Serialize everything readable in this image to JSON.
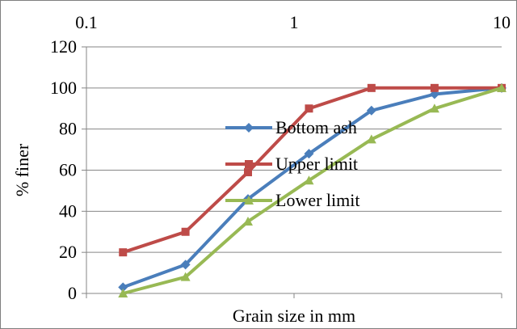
{
  "chart_data": {
    "type": "line",
    "xscale": "log",
    "xlim": [
      0.1,
      10
    ],
    "ylim": [
      0,
      120
    ],
    "x_ticks": [
      0.1,
      1,
      10
    ],
    "x_tick_labels": [
      "0.1",
      "1",
      "10"
    ],
    "x_tick_position": "top",
    "y_ticks": [
      0,
      20,
      40,
      60,
      80,
      100,
      120
    ],
    "y_tick_labels": [
      "0",
      "20",
      "40",
      "60",
      "80",
      "100",
      "120"
    ],
    "xlabel": "Grain size in mm",
    "ylabel": "% finer",
    "grid": "horizontal",
    "legend_position": "center",
    "series": [
      {
        "name": "Bottom ash",
        "color": "#4A7EBB",
        "marker": "diamond",
        "x": [
          0.15,
          0.3,
          0.6,
          1.18,
          2.36,
          4.75,
          10
        ],
        "y": [
          3,
          14,
          46,
          68,
          89,
          97,
          100
        ]
      },
      {
        "name": "Upper limit",
        "color": "#BE4B48",
        "marker": "square",
        "x": [
          0.15,
          0.3,
          0.6,
          1.18,
          2.36,
          4.75,
          10
        ],
        "y": [
          20,
          30,
          59,
          90,
          100,
          100,
          100
        ]
      },
      {
        "name": "Lower limit",
        "color": "#98B954",
        "marker": "triangle",
        "x": [
          0.15,
          0.3,
          0.6,
          1.18,
          2.36,
          4.75,
          10
        ],
        "y": [
          0,
          8,
          35,
          55,
          75,
          90,
          100
        ]
      }
    ]
  }
}
